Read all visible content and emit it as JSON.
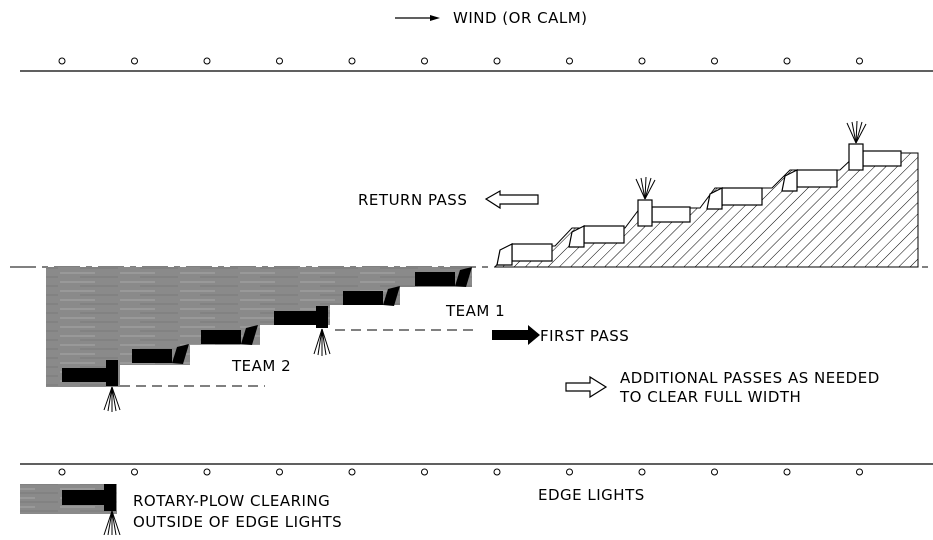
{
  "labels": {
    "wind": "WIND (OR CALM)",
    "return_pass": "RETURN PASS",
    "team1": "TEAM 1",
    "team2": "TEAM 2",
    "first_pass": "FIRST PASS",
    "additional_line1": "ADDITIONAL PASSES AS NEEDED",
    "additional_line2": "TO CLEAR FULL WIDTH",
    "edge_lights": "EDGE LIGHTS",
    "rotary_line1": "ROTARY-PLOW CLEARING",
    "rotary_line2": "OUTSIDE OF EDGE LIGHTS"
  },
  "colors": {
    "cleared_area": "#8c8c8c",
    "plow": "#000000",
    "line": "#000000"
  }
}
